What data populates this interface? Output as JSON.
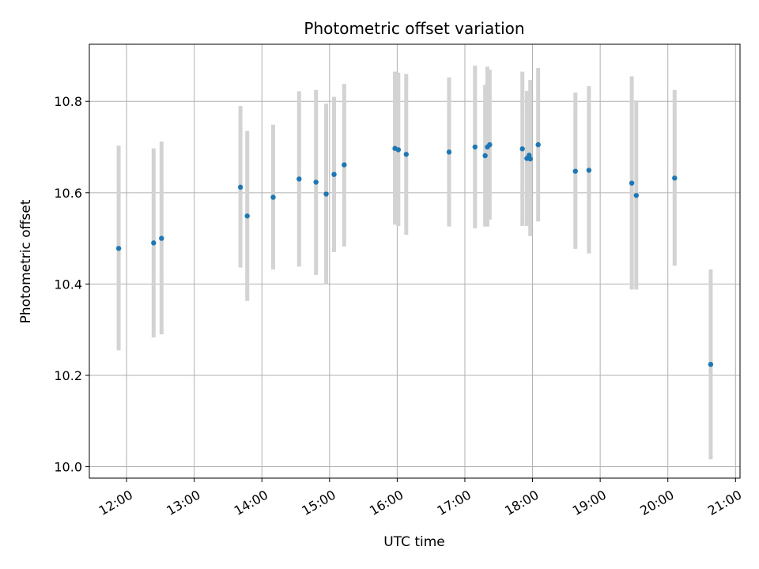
{
  "chart_data": {
    "type": "scatter",
    "title": "Photometric offset variation",
    "xlabel": "UTC time",
    "ylabel": "Photometric offset",
    "x_unit": "hours (UTC)",
    "xlim": [
      "11:27",
      "21:04"
    ],
    "ylim": [
      9.975,
      10.925
    ],
    "x_ticks": [
      "12:00",
      "13:00",
      "14:00",
      "15:00",
      "16:00",
      "17:00",
      "18:00",
      "19:00",
      "20:00",
      "21:00"
    ],
    "y_ticks": [
      "10.0",
      "10.2",
      "10.4",
      "10.6",
      "10.8"
    ],
    "grid": true,
    "marker_color": "#1f77b4",
    "errorbar_color": "#d3d3d3",
    "points": [
      {
        "x": "11:53",
        "y": 10.478,
        "ylow": 10.255,
        "yhigh": 10.703
      },
      {
        "x": "12:24",
        "y": 10.49,
        "ylow": 10.283,
        "yhigh": 10.697
      },
      {
        "x": "12:31",
        "y": 10.5,
        "ylow": 10.29,
        "yhigh": 10.712
      },
      {
        "x": "13:41",
        "y": 10.612,
        "ylow": 10.436,
        "yhigh": 10.79
      },
      {
        "x": "13:47",
        "y": 10.549,
        "ylow": 10.363,
        "yhigh": 10.735
      },
      {
        "x": "14:10",
        "y": 10.59,
        "ylow": 10.432,
        "yhigh": 10.749
      },
      {
        "x": "14:33",
        "y": 10.63,
        "ylow": 10.438,
        "yhigh": 10.822
      },
      {
        "x": "14:48",
        "y": 10.623,
        "ylow": 10.42,
        "yhigh": 10.825
      },
      {
        "x": "14:57",
        "y": 10.597,
        "ylow": 10.4,
        "yhigh": 10.795
      },
      {
        "x": "15:04",
        "y": 10.64,
        "ylow": 10.47,
        "yhigh": 10.81
      },
      {
        "x": "15:13",
        "y": 10.661,
        "ylow": 10.482,
        "yhigh": 10.838
      },
      {
        "x": "15:58",
        "y": 10.697,
        "ylow": 10.53,
        "yhigh": 10.865
      },
      {
        "x": "16:01",
        "y": 10.694,
        "ylow": 10.527,
        "yhigh": 10.863
      },
      {
        "x": "16:08",
        "y": 10.684,
        "ylow": 10.508,
        "yhigh": 10.86
      },
      {
        "x": "16:46",
        "y": 10.689,
        "ylow": 10.526,
        "yhigh": 10.852
      },
      {
        "x": "17:09",
        "y": 10.7,
        "ylow": 10.522,
        "yhigh": 10.878
      },
      {
        "x": "17:18",
        "y": 10.681,
        "ylow": 10.526,
        "yhigh": 10.836
      },
      {
        "x": "17:20",
        "y": 10.7,
        "ylow": 10.526,
        "yhigh": 10.876
      },
      {
        "x": "17:22",
        "y": 10.705,
        "ylow": 10.541,
        "yhigh": 10.869
      },
      {
        "x": "17:51",
        "y": 10.696,
        "ylow": 10.527,
        "yhigh": 10.865
      },
      {
        "x": "17:55",
        "y": 10.675,
        "ylow": 10.527,
        "yhigh": 10.823
      },
      {
        "x": "17:58",
        "y": 10.674,
        "ylow": 10.505,
        "yhigh": 10.847
      },
      {
        "x": "17:57",
        "y": 10.682,
        "ylow": 10.527,
        "yhigh": 10.823
      },
      {
        "x": "18:05",
        "y": 10.705,
        "ylow": 10.537,
        "yhigh": 10.873
      },
      {
        "x": "18:38",
        "y": 10.647,
        "ylow": 10.477,
        "yhigh": 10.819
      },
      {
        "x": "18:50",
        "y": 10.649,
        "ylow": 10.467,
        "yhigh": 10.833
      },
      {
        "x": "19:28",
        "y": 10.621,
        "ylow": 10.388,
        "yhigh": 10.855
      },
      {
        "x": "19:32",
        "y": 10.594,
        "ylow": 10.388,
        "yhigh": 10.802
      },
      {
        "x": "20:06",
        "y": 10.632,
        "ylow": 10.44,
        "yhigh": 10.825
      },
      {
        "x": "20:38",
        "y": 10.224,
        "ylow": 10.016,
        "yhigh": 10.432
      }
    ]
  }
}
